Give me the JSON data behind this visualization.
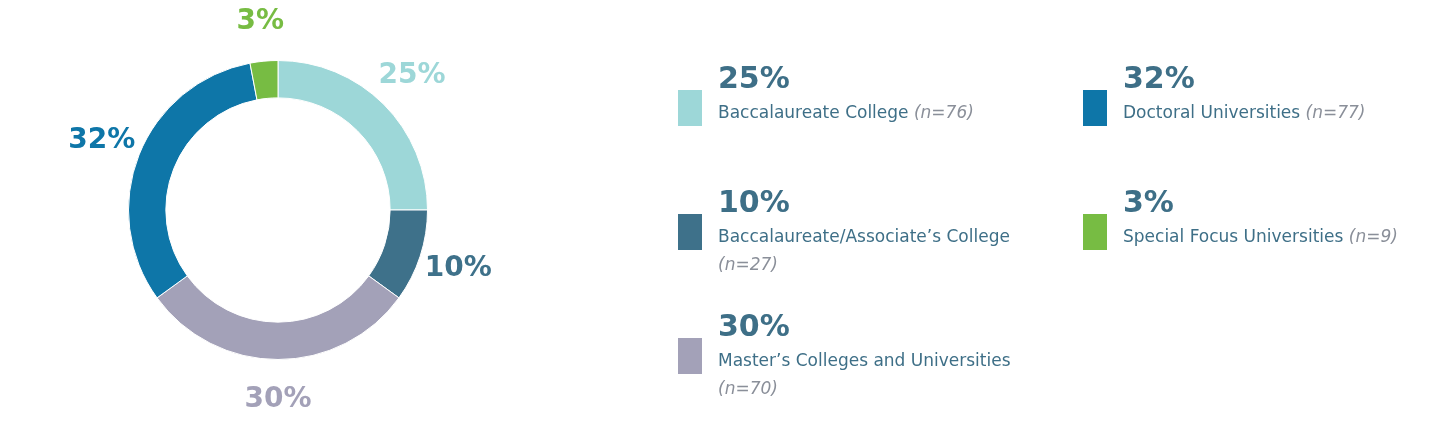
{
  "chart_data": {
    "type": "donut",
    "categories": [
      "Baccalaureate College (n=76)",
      "Baccalaureate/Associate’s College (n=27)",
      "Master’s Colleges and Universities (n=70)",
      "Doctoral Universities (n=77)",
      "Special Focus Universities (n=9)"
    ],
    "values": [
      25,
      10,
      30,
      32,
      3
    ],
    "value_labels": [
      "25%",
      "10%",
      "30%",
      "32%",
      "3%"
    ],
    "colors": [
      "#9dd7d8",
      "#3e718a",
      "#a3a1b8",
      "#0e76a8",
      "#77bc43"
    ],
    "legend": "right"
  }
}
